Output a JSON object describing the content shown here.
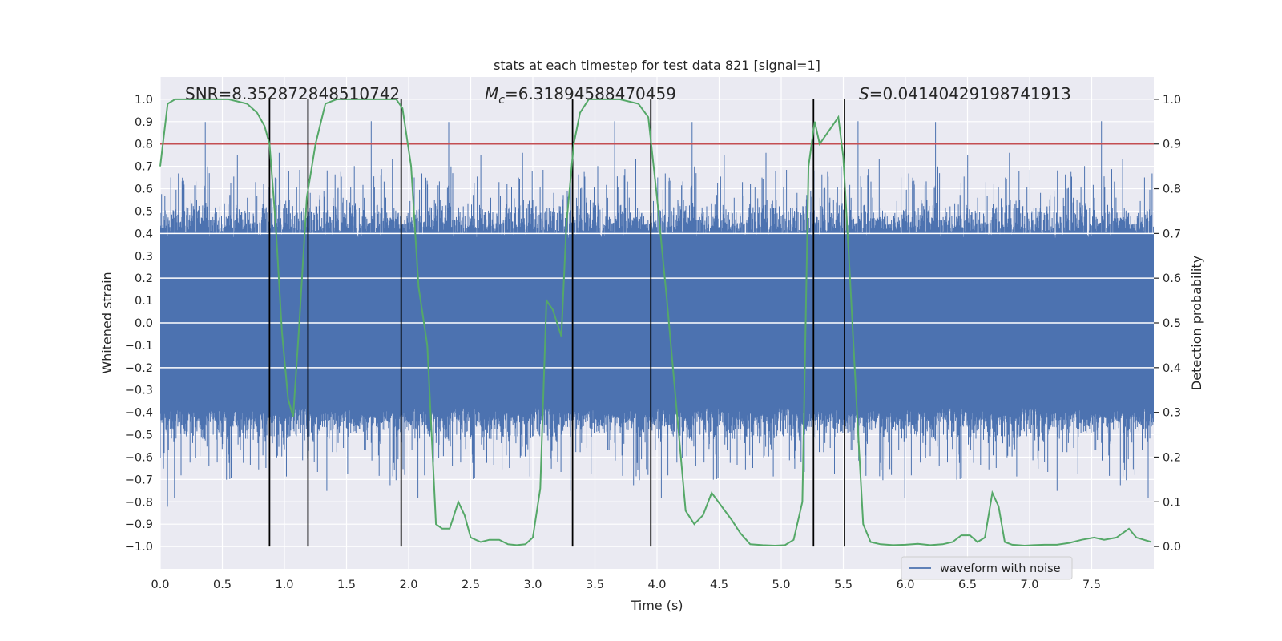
{
  "chart_data": {
    "type": "line",
    "title": "stats at each timestep for test data 821 [signal=1]",
    "xlabel": "Time (s)",
    "ylabel": "Whitened strain",
    "y2label": "Detection probability",
    "xlim": [
      0,
      8
    ],
    "ylim": [
      -1.1,
      1.1
    ],
    "y2lim": [
      -0.05,
      1.05
    ],
    "x_ticks": [
      0.0,
      0.5,
      1.0,
      1.5,
      2.0,
      2.5,
      3.0,
      3.5,
      4.0,
      4.5,
      5.0,
      5.5,
      6.0,
      6.5,
      7.0,
      7.5
    ],
    "y_ticks": [
      -1.0,
      -0.9,
      -0.8,
      -0.7,
      -0.6,
      -0.5,
      -0.4,
      -0.3,
      -0.2,
      -0.1,
      0.0,
      0.1,
      0.2,
      0.3,
      0.4,
      0.5,
      0.6,
      0.7,
      0.8,
      0.9,
      1.0
    ],
    "y2_ticks": [
      0.0,
      0.1,
      0.2,
      0.3,
      0.4,
      0.5,
      0.6,
      0.7,
      0.8,
      0.9,
      1.0
    ],
    "grid": true,
    "legend": {
      "placement": "lower-right",
      "entries": [
        "waveform with noise"
      ]
    },
    "annotations": {
      "snr": "SNR=8.352872848510742",
      "mc_symbol": "M",
      "mc_sub": "c",
      "mc_value": "=6.31894588470459",
      "s_symbol": "S",
      "s_value": "=0.04140429198741913"
    },
    "series": [
      {
        "name": "waveform with noise",
        "axis": "left",
        "color": "#4c72b0",
        "style": "dense noisy strain, core band about ±0.35, peaks reaching about ±0.9"
      },
      {
        "axis": "right",
        "color": "#55a868",
        "x": [
          0.0,
          0.06,
          0.12,
          0.25,
          0.4,
          0.55,
          0.7,
          0.78,
          0.84,
          0.88,
          0.93,
          0.98,
          1.03,
          1.07,
          1.12,
          1.18,
          1.25,
          1.33,
          1.42,
          1.55,
          1.7,
          1.82,
          1.9,
          1.95,
          2.02,
          2.08,
          2.15,
          2.22,
          2.27,
          2.33,
          2.4,
          2.45,
          2.5,
          2.58,
          2.65,
          2.73,
          2.8,
          2.87,
          2.94,
          3.0,
          3.06,
          3.11,
          3.16,
          3.23,
          3.27,
          3.33,
          3.38,
          3.45,
          3.55,
          3.7,
          3.85,
          3.93,
          4.0,
          4.08,
          4.16,
          4.23,
          4.3,
          4.37,
          4.44,
          4.52,
          4.6,
          4.67,
          4.75,
          4.85,
          4.95,
          5.03,
          5.1,
          5.17,
          5.22,
          5.27,
          5.31,
          5.36,
          5.41,
          5.46,
          5.5,
          5.55,
          5.61,
          5.66,
          5.72,
          5.8,
          5.9,
          6.0,
          6.1,
          6.2,
          6.3,
          6.38,
          6.45,
          6.52,
          6.58,
          6.64,
          6.7,
          6.75,
          6.8,
          6.86,
          6.91,
          6.96,
          7.03,
          7.12,
          7.22,
          7.32,
          7.42,
          7.52,
          7.6,
          7.7,
          7.8,
          7.86,
          7.92,
          7.98
        ],
        "y": [
          0.85,
          0.99,
          1.0,
          1.0,
          1.0,
          1.0,
          0.99,
          0.97,
          0.94,
          0.9,
          0.72,
          0.48,
          0.33,
          0.29,
          0.5,
          0.78,
          0.9,
          0.99,
          1.0,
          1.0,
          1.0,
          1.0,
          1.0,
          0.98,
          0.85,
          0.58,
          0.45,
          0.05,
          0.04,
          0.04,
          0.1,
          0.07,
          0.02,
          0.01,
          0.015,
          0.015,
          0.005,
          0.003,
          0.005,
          0.02,
          0.13,
          0.55,
          0.53,
          0.47,
          0.72,
          0.9,
          0.97,
          1.0,
          1.0,
          1.0,
          0.99,
          0.96,
          0.78,
          0.55,
          0.3,
          0.08,
          0.05,
          0.07,
          0.12,
          0.09,
          0.06,
          0.03,
          0.005,
          0.003,
          0.002,
          0.003,
          0.015,
          0.1,
          0.85,
          0.95,
          0.9,
          0.92,
          0.94,
          0.96,
          0.87,
          0.62,
          0.3,
          0.05,
          0.01,
          0.005,
          0.003,
          0.004,
          0.006,
          0.003,
          0.005,
          0.01,
          0.025,
          0.025,
          0.01,
          0.02,
          0.12,
          0.09,
          0.01,
          0.004,
          0.003,
          0.002,
          0.003,
          0.004,
          0.004,
          0.008,
          0.015,
          0.02,
          0.015,
          0.02,
          0.04,
          0.02,
          0.015,
          0.01
        ]
      }
    ],
    "hlines": [
      {
        "axis": "right",
        "y": 0.9,
        "color": "#c44e52"
      }
    ],
    "vlines": {
      "x": [
        0.88,
        1.19,
        1.94,
        3.32,
        3.95,
        5.26,
        5.51
      ],
      "y2_from": 0.0,
      "y2_to": 1.0,
      "color": "#000000"
    }
  }
}
